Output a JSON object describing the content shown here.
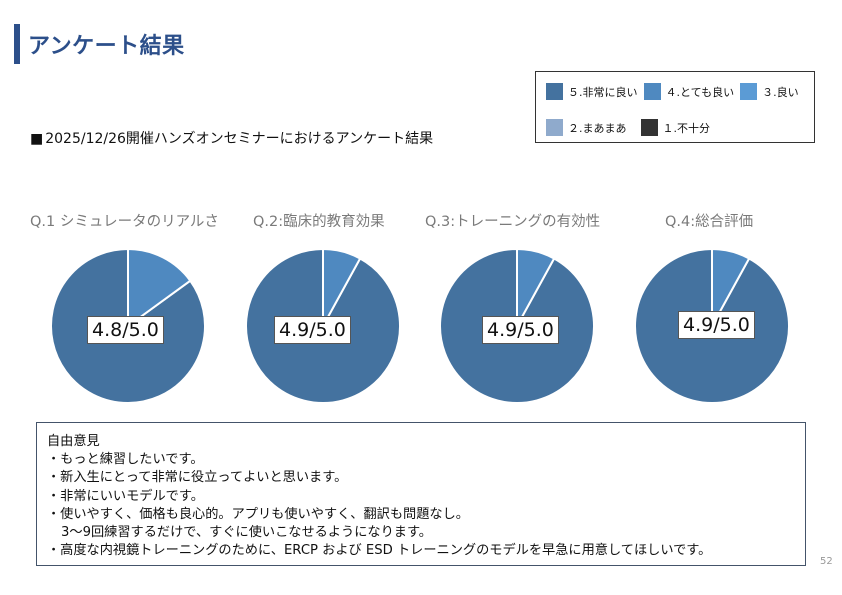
{
  "slide": {
    "title": "アンケート結果",
    "subtitle_bullet": "■",
    "subtitle": "2025/12/26開催ハンズオンセミナーにおけるアンケート結果",
    "page_number": "52"
  },
  "colors": {
    "title": "#2c4f8a",
    "rating5": "#44729f",
    "rating4": "#4f89c0",
    "rating3": "#5b9bd5",
    "rating2": "#8faacc",
    "rating1": "#333333"
  },
  "legend": {
    "row1": [
      {
        "label": "５.非常に良い",
        "color": "#44729f"
      },
      {
        "label": "４.とても良い",
        "color": "#4f89c0"
      },
      {
        "label": "３.良い",
        "color": "#5b9bd5"
      }
    ],
    "row2": [
      {
        "label": "２.まあまあ",
        "color": "#8faacc"
      },
      {
        "label": "１.不十分",
        "color": "#333333"
      }
    ]
  },
  "chart_data": [
    {
      "type": "pie",
      "title": "Q.1 シミュレータのリアルさ",
      "score_label": "4.8/5.0",
      "slices": [
        {
          "label": "５.非常に良い",
          "value": 85
        },
        {
          "label": "４.とても良い",
          "value": 15
        }
      ]
    },
    {
      "type": "pie",
      "title": "Q.2:臨床的教育効果",
      "score_label": "4.9/5.0",
      "slices": [
        {
          "label": "５.非常に良い",
          "value": 92
        },
        {
          "label": "４.とても良い",
          "value": 8
        }
      ]
    },
    {
      "type": "pie",
      "title": "Q.3:トレーニングの有効性",
      "score_label": "4.9/5.0",
      "slices": [
        {
          "label": "５.非常に良い",
          "value": 92
        },
        {
          "label": "４.とても良い",
          "value": 8
        }
      ]
    },
    {
      "type": "pie",
      "title": "Q.4:総合評価",
      "score_label": "4.9/5.0",
      "slices": [
        {
          "label": "５.非常に良い",
          "value": 92
        },
        {
          "label": "４.とても良い",
          "value": 8
        }
      ]
    }
  ],
  "comments": {
    "heading": "自由意見",
    "items": [
      "・もっと練習したいです。",
      "・新入生にとって非常に役立ってよいと思います。",
      "・非常にいいモデルです。",
      "・使いやすく、価格も良心的。アプリも使いやすく、翻訳も問題なし。",
      "3〜9回練習するだけで、すぐに使いこなせるようになります。",
      "・高度な内視鏡トレーニングのために、ERCP および ESD トレーニングのモデルを早急に用意してほしいです。"
    ]
  }
}
